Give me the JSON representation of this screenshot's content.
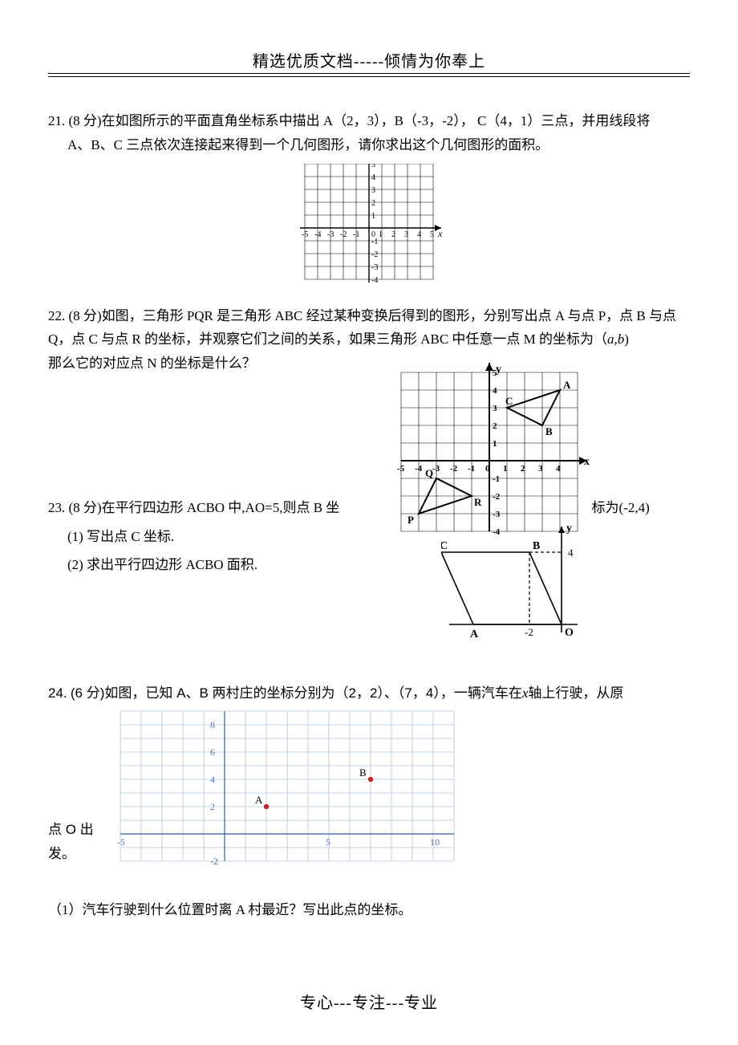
{
  "header": {
    "top": "精选优质文档-----倾情为你奉上"
  },
  "q21": {
    "label": "21.",
    "points": "(8 分)",
    "text1": "在如图所示的平面直角坐标系中描出 A（2，3），B（-3，-2），  C（4，1）三点，并用线段将",
    "text2": "A、B、C 三点依次连接起来得到一个几何图形，请你求出这个几何图形的面积。",
    "grid": {
      "x_ticks": [
        "-5",
        "-4",
        "-3",
        "-2",
        "-1",
        "0",
        "1",
        "2",
        "3",
        "4",
        "5"
      ],
      "y_ticks": [
        "5",
        "4",
        "3",
        "2",
        "1",
        "-1",
        "-2",
        "-3",
        "-4"
      ],
      "x_label": "x",
      "y_label": "y",
      "grid_color": "#000000",
      "bg": "#ffffff",
      "cell": 16
    }
  },
  "q22": {
    "label": "22.",
    "points": "(8 分)",
    "line1": "如图，三角形 PQR 是三角形 ABC 经过某种变换后得到的图形，分别写出点 A 与点 P，点 B 与点",
    "line2": "Q，点 C 与点 R 的坐标，并观察它们之间的关系，如果三角形 ABC 中任意一点 M 的坐标为（",
    "line2b": "a,b",
    "line2c": ")",
    "line3": "那么它的对应点 N 的坐标是什么？",
    "diagram": {
      "x_ticks": [
        "-5",
        "-4",
        "-3",
        "-2",
        "-1",
        "0",
        "1",
        "2",
        "3",
        "4"
      ],
      "y_ticks": [
        "5",
        "4",
        "3",
        "2",
        "1",
        "-1",
        "-2",
        "-3",
        "-4"
      ],
      "x_label": "x",
      "y_label": "y",
      "A": [
        4,
        4
      ],
      "B": [
        3,
        2
      ],
      "C": [
        1,
        3
      ],
      "P": [
        -4,
        -3
      ],
      "Q": [
        -3,
        -1
      ],
      "R": [
        -1,
        -2
      ],
      "grid_color": "#000000",
      "line_weight": 2,
      "cell": 22
    }
  },
  "q23": {
    "label": "23.",
    "points": "(8 分)",
    "line1a": "在平行四边形 ACBO 中,AO=5,则点 B 坐",
    "line1b": "标为(-2,4)",
    "sub1": "(1) 写出点 C 坐标.",
    "sub2": "(2) 求出平行四边形 ACBO 面积.",
    "diagram": {
      "labels": {
        "A": "A",
        "B": "B",
        "C": "C",
        "O": "O",
        "y": "y",
        "neg2": "-2",
        "four": "4"
      },
      "line_color": "#000000"
    }
  },
  "q24": {
    "label": "24.",
    "points": "(6 分)",
    "text_a": "如图，已知 A、B 两村庄的坐标分别为（2，2）、（7，4），一辆汽车在",
    "text_b": "轴上行驶，从原",
    "text_origin": "点 O 出发。",
    "sub1": "（1）汽车行驶到什么位置时离 A 村最近？写出此点的坐标。",
    "diagram": {
      "x_ticks": [
        "-5",
        "5",
        "10"
      ],
      "y_ticks": [
        "-2",
        "2",
        "4",
        "6",
        "8"
      ],
      "A": [
        2,
        2
      ],
      "B": [
        7,
        4
      ],
      "A_label": "A",
      "B_label": "B",
      "grid_color": "#b0c6e0",
      "axis_color": "#4a74b8",
      "point_color": "#d02020",
      "bg": "#ffffff"
    }
  },
  "footer": "专心---专注---专业"
}
